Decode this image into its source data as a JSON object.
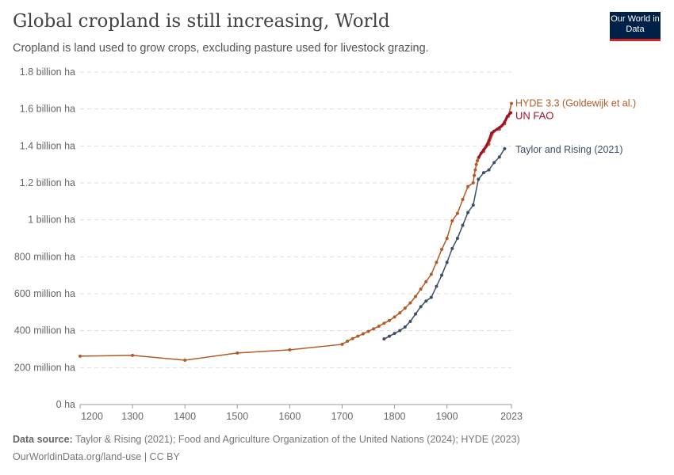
{
  "header": {
    "title": "Global cropland is still increasing, World",
    "subtitle": "Cropland is land used to grow crops, excluding pasture used for livestock grazing.",
    "logo": "Our World in Data"
  },
  "footer": {
    "source_label": "Data source:",
    "source": "Taylor & Rising (2021); Food and Agriculture Organization of the United Nations (2024); HYDE (2023)",
    "url": "OurWorldinData.org/land-use | CC BY"
  },
  "chart_data": {
    "type": "line",
    "xlim": [
      1200,
      2023
    ],
    "ylim": [
      0,
      1.8
    ],
    "x_ticks": [
      1200,
      1300,
      1400,
      1500,
      1600,
      1700,
      1800,
      1900,
      2023
    ],
    "y_ticks": [
      0,
      0.2,
      0.4,
      0.6,
      0.8,
      1.0,
      1.2,
      1.4,
      1.6,
      1.8
    ],
    "y_tick_labels": [
      "0 ha",
      "200 million ha",
      "400 million ha",
      "600 million ha",
      "800 million ha",
      "1 billion ha",
      "1.2 billion ha",
      "1.4 billion ha",
      "1.6 billion ha",
      "1.8 billion ha"
    ],
    "grid": "horizontal dashed",
    "legend": "inline labels at line ends (right)",
    "series": [
      {
        "name": "HYDE 3.3 (Goldewijk et al.)",
        "color": "#b35a26",
        "x": [
          1200,
          1300,
          1400,
          1500,
          1600,
          1700,
          1710,
          1720,
          1730,
          1740,
          1750,
          1760,
          1770,
          1780,
          1790,
          1800,
          1810,
          1820,
          1830,
          1840,
          1850,
          1860,
          1870,
          1880,
          1890,
          1900,
          1910,
          1920,
          1930,
          1940,
          1950,
          1952,
          1954,
          1956,
          1958,
          1960,
          1970,
          1980,
          1990,
          2000,
          2010,
          2017,
          2023
        ],
        "y": [
          0.262,
          0.266,
          0.24,
          0.279,
          0.296,
          0.326,
          0.343,
          0.357,
          0.37,
          0.383,
          0.396,
          0.41,
          0.424,
          0.44,
          0.455,
          0.474,
          0.496,
          0.522,
          0.55,
          0.585,
          0.625,
          0.665,
          0.705,
          0.77,
          0.84,
          0.9,
          0.995,
          1.035,
          1.11,
          1.18,
          1.2,
          1.24,
          1.27,
          1.3,
          1.32,
          1.335,
          1.37,
          1.41,
          1.48,
          1.49,
          1.52,
          1.56,
          1.63
        ]
      },
      {
        "name": "UN FAO",
        "color": "#a2112a",
        "x": [
          1961,
          1965,
          1970,
          1975,
          1980,
          1985,
          1990,
          1995,
          2000,
          2005,
          2010,
          2015,
          2020,
          2022
        ],
        "y": [
          1.34,
          1.36,
          1.38,
          1.4,
          1.43,
          1.47,
          1.48,
          1.49,
          1.5,
          1.51,
          1.53,
          1.56,
          1.575,
          1.58
        ]
      },
      {
        "name": "Taylor and Rising (2021)",
        "color": "#3c4e66",
        "x": [
          1780,
          1790,
          1800,
          1810,
          1820,
          1830,
          1840,
          1850,
          1860,
          1870,
          1880,
          1890,
          1900,
          1910,
          1920,
          1930,
          1940,
          1950,
          1960,
          1970,
          1980,
          1990,
          2000,
          2010
        ],
        "y": [
          0.355,
          0.37,
          0.385,
          0.4,
          0.42,
          0.45,
          0.49,
          0.53,
          0.56,
          0.58,
          0.64,
          0.7,
          0.77,
          0.845,
          0.9,
          0.97,
          1.04,
          1.08,
          1.22,
          1.255,
          1.27,
          1.31,
          1.34,
          1.385
        ]
      }
    ]
  }
}
